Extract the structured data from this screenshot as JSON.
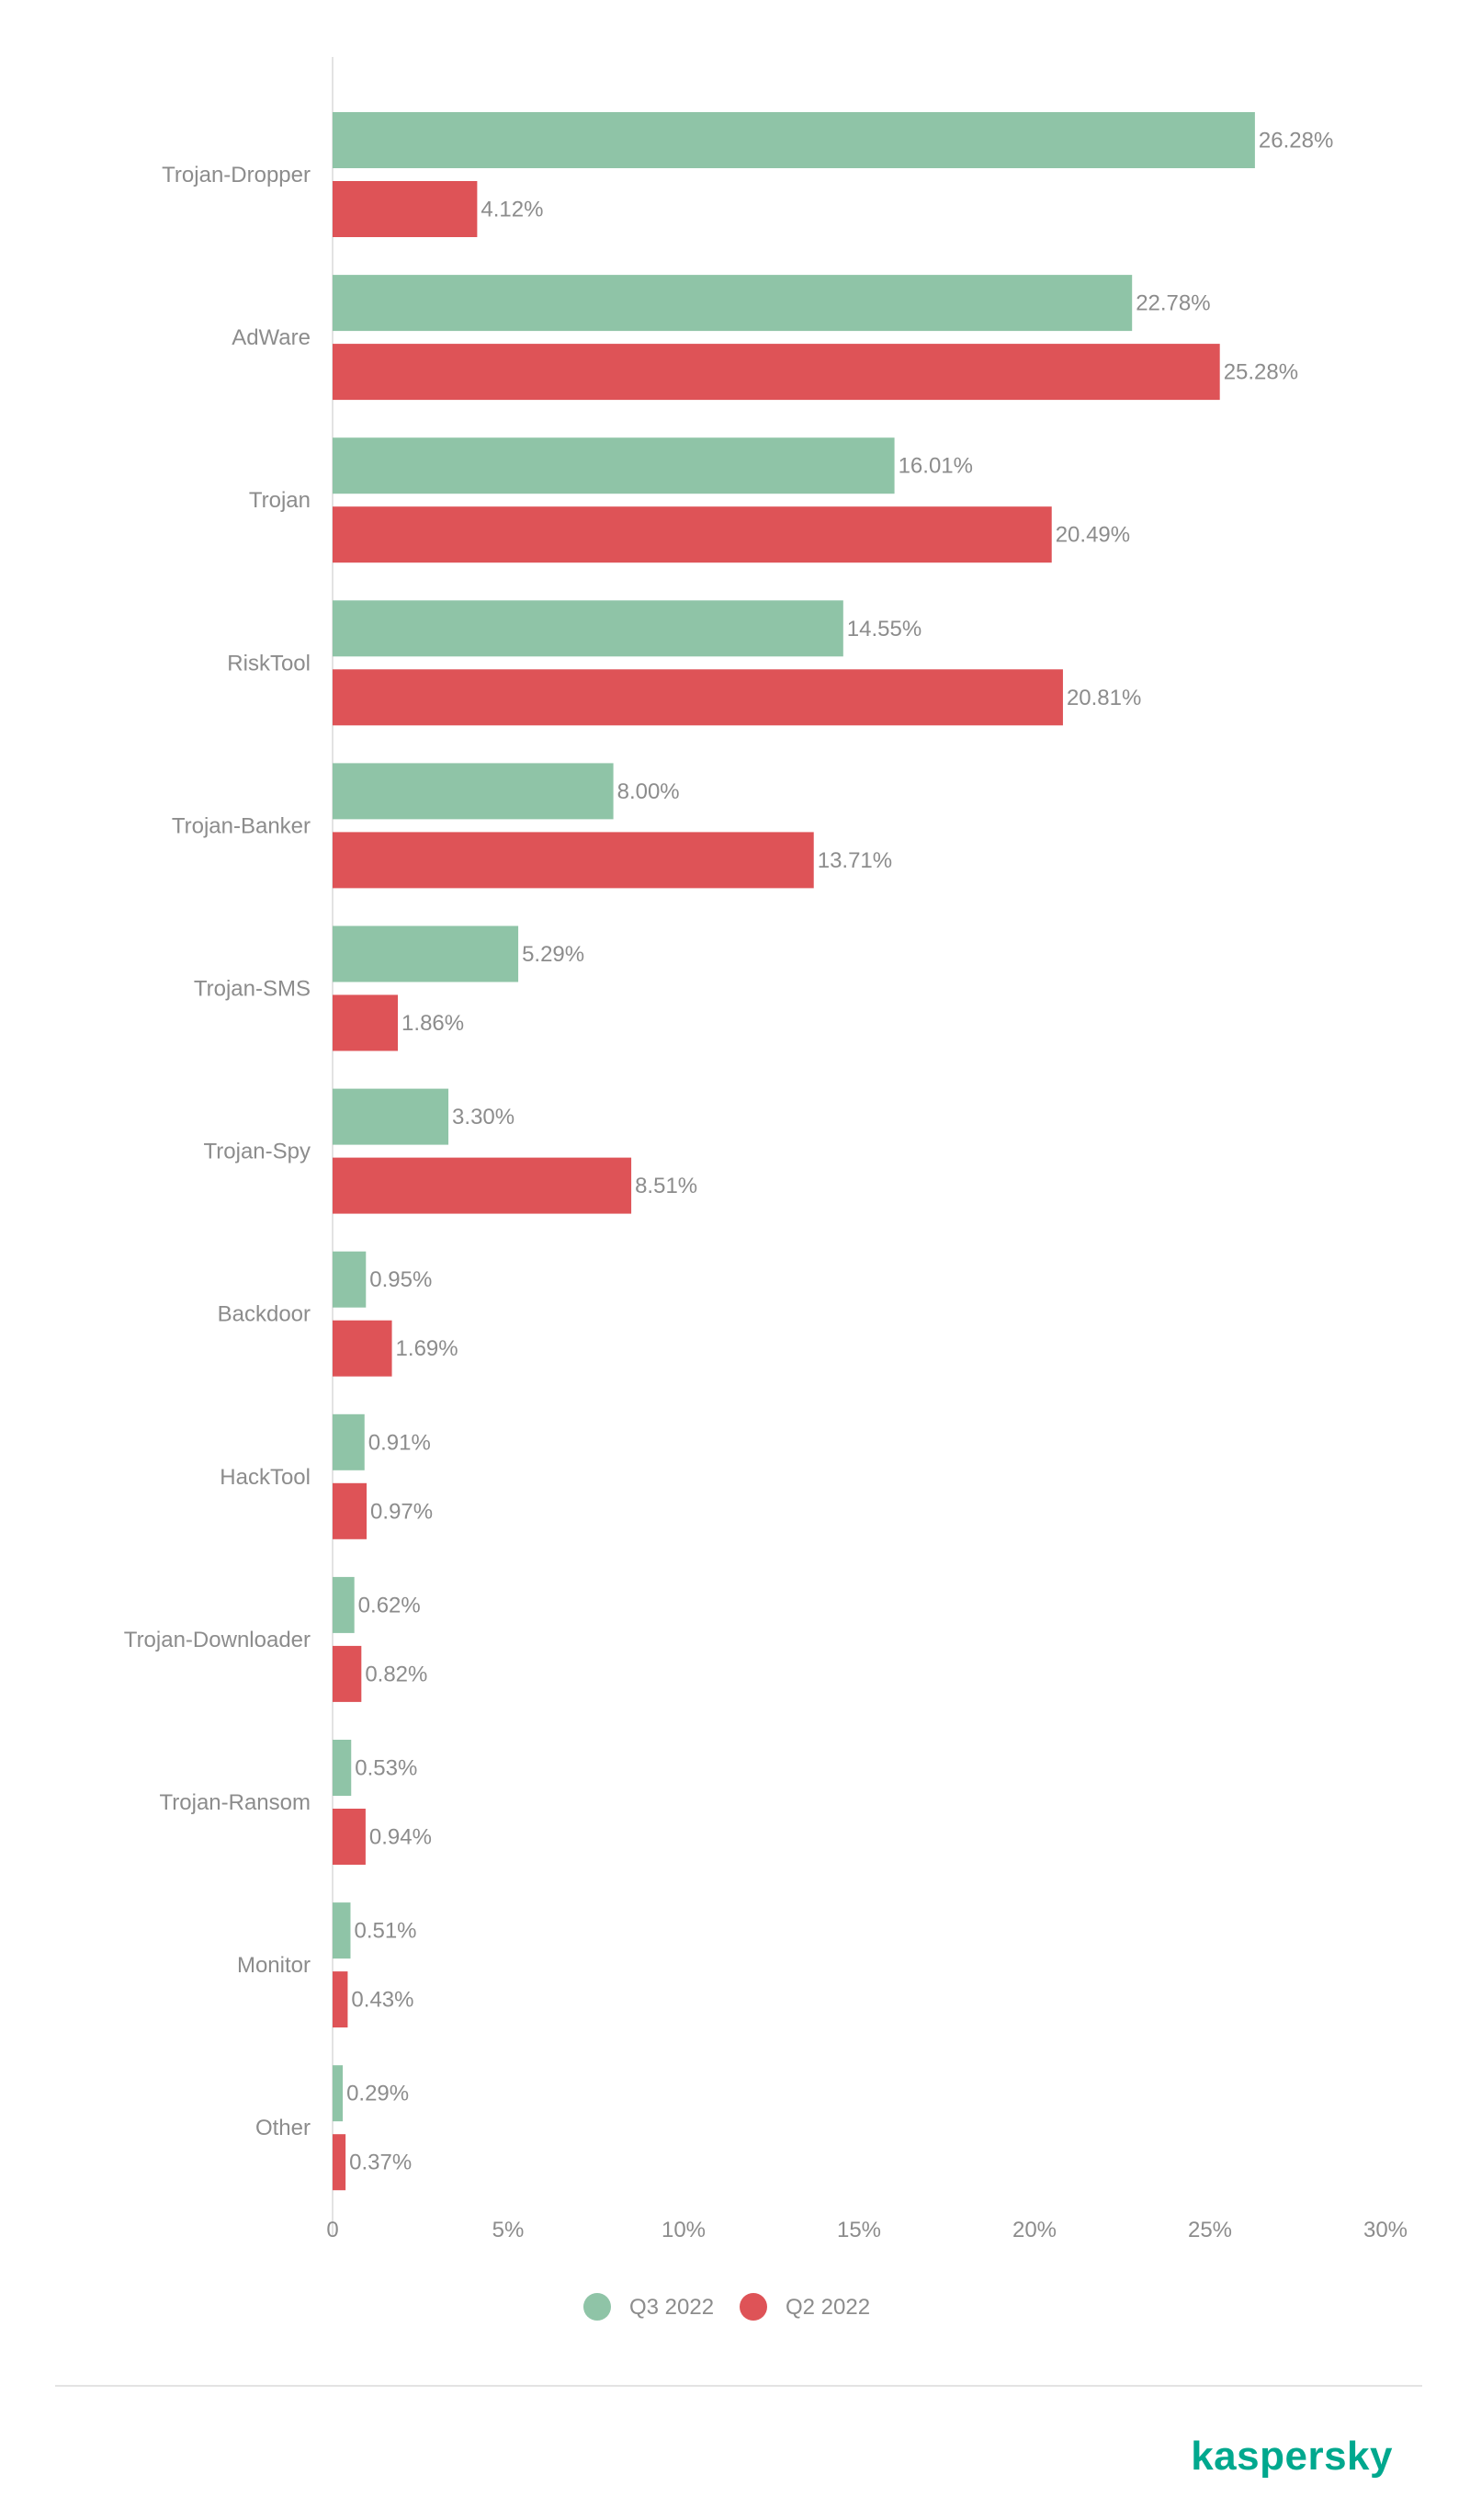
{
  "chart_data": {
    "type": "bar",
    "orientation": "horizontal",
    "categories": [
      "Trojan-Dropper",
      "AdWare",
      "Trojan",
      "RiskTool",
      "Trojan-Banker",
      "Trojan-SMS",
      "Trojan-Spy",
      "Backdoor",
      "HackTool",
      "Trojan-Downloader",
      "Trojan-Ransom",
      "Monitor",
      "Other"
    ],
    "series": [
      {
        "name": "Q3 2022",
        "color": "#8fc4a7",
        "values": [
          26.28,
          22.78,
          16.01,
          14.55,
          8.0,
          5.29,
          3.3,
          0.95,
          0.91,
          0.62,
          0.53,
          0.51,
          0.29
        ],
        "labels": [
          "26.28%",
          "22.78%",
          "16.01%",
          "14.55%",
          "8.00%",
          "5.29%",
          "3.30%",
          "0.95%",
          "0.91%",
          "0.62%",
          "0.53%",
          "0.51%",
          "0.29%"
        ]
      },
      {
        "name": "Q2 2022",
        "color": "#de5357",
        "values": [
          4.12,
          25.28,
          20.49,
          20.81,
          13.71,
          1.86,
          8.51,
          1.69,
          0.97,
          0.82,
          0.94,
          0.43,
          0.37
        ],
        "labels": [
          "4.12%",
          "25.28%",
          "20.49%",
          "20.81%",
          "13.71%",
          "1.86%",
          "8.51%",
          "1.69%",
          "0.97%",
          "0.82%",
          "0.94%",
          "0.43%",
          "0.37%"
        ]
      }
    ],
    "xlim": [
      0,
      30
    ],
    "ticks": [
      0,
      5,
      10,
      15,
      20,
      25,
      30
    ],
    "tick_labels": [
      "0",
      "5%",
      "10%",
      "15%",
      "20%",
      "25%",
      "30%"
    ],
    "grid": false,
    "legend_position": "bottom-center"
  },
  "brand": {
    "logo_text": "kaspersky",
    "color": "#00a88e"
  }
}
